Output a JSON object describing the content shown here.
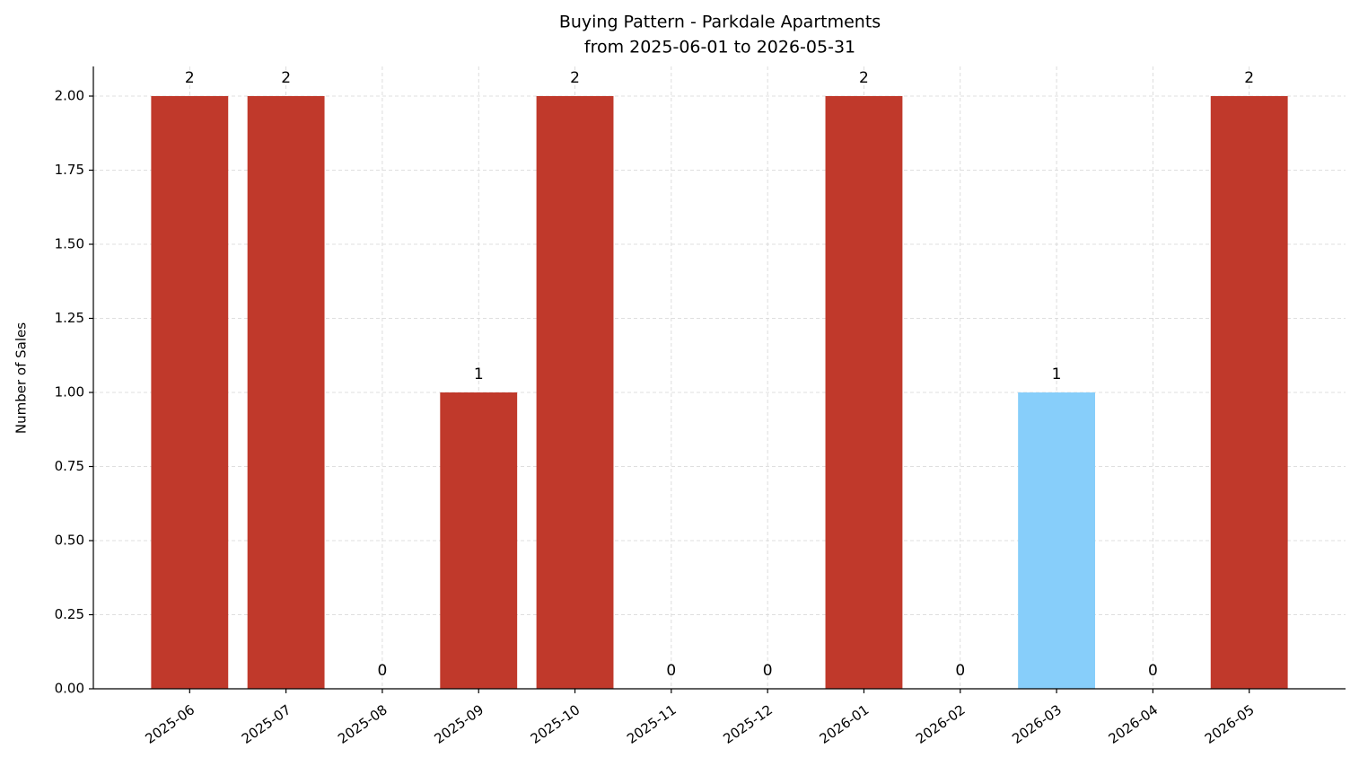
{
  "chart_data": {
    "type": "bar",
    "title": "Buying Pattern - Parkdale Apartments",
    "subtitle": "from 2025-06-01 to 2026-05-31",
    "y_label": "Number of Sales",
    "categories": [
      "2025-06",
      "2025-07",
      "2025-08",
      "2025-09",
      "2025-10",
      "2025-11",
      "2025-12",
      "2026-01",
      "2026-02",
      "2026-03",
      "2026-04",
      "2026-05"
    ],
    "values": [
      2,
      2,
      0,
      1,
      2,
      0,
      0,
      2,
      0,
      1,
      0,
      2
    ],
    "colors": [
      "#c0392b",
      "#c0392b",
      "#c0392b",
      "#c0392b",
      "#c0392b",
      "#c0392b",
      "#c0392b",
      "#c0392b",
      "#c0392b",
      "#87cefa",
      "#c0392b",
      "#c0392b"
    ],
    "ylim": [
      0,
      2.1
    ],
    "yticks": [
      {
        "value": 0,
        "label": "0.00"
      },
      {
        "value": 0.25,
        "label": "0.25"
      },
      {
        "value": 0.5,
        "label": "0.50"
      },
      {
        "value": 0.75,
        "label": "0.75"
      },
      {
        "value": 1,
        "label": "1.00"
      },
      {
        "value": 1.25,
        "label": "1.25"
      },
      {
        "value": 1.5,
        "label": "1.50"
      },
      {
        "value": 1.75,
        "label": "1.75"
      },
      {
        "value": 2,
        "label": "2.00"
      }
    ],
    "grid": true
  }
}
